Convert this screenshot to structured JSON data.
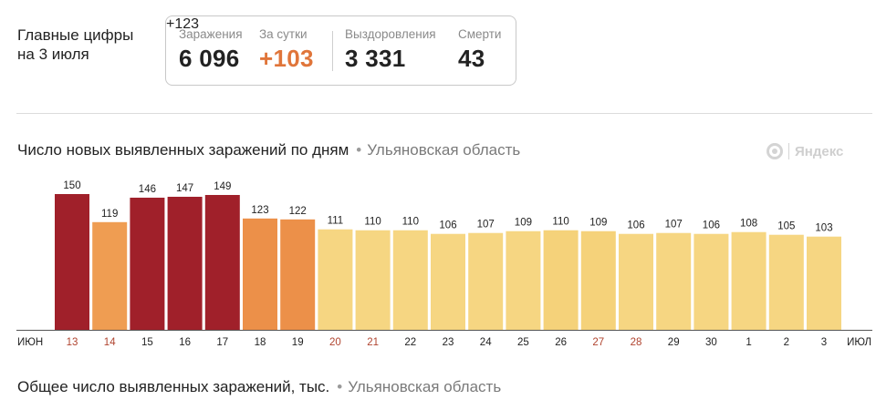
{
  "headline": {
    "line1": "Главные цифры",
    "line2": "на 3 июля"
  },
  "stats": {
    "infections_label": "Заражения",
    "infections_value": "6 096",
    "per_day_label": "За сутки",
    "per_day_value": "+103",
    "recovered_label": "Выздоровления",
    "recovered_value": "3 331",
    "recovered_delta": "+123",
    "deaths_label": "Смерти",
    "deaths_value": "43"
  },
  "section1": {
    "title": "Число новых выявленных заражений по дням",
    "region": "Ульяновская область"
  },
  "section2": {
    "title": "Общее число выявленных заражений, тыс.",
    "region": "Ульяновская область"
  },
  "logo": {
    "text": "Яндекс"
  },
  "colors": {
    "dark_red": "#a0202a",
    "orange": "#ef9d52",
    "dark_orange": "#eb8d4c",
    "yellow": "#f6d682",
    "light_yellow": "#f8de94",
    "weekend_tick": "#b0442f",
    "tick": "#222222"
  },
  "chart_data": {
    "type": "bar",
    "month_start_label": "ИЮН",
    "month_end_label": "ИЮЛ",
    "categories": [
      "13",
      "14",
      "15",
      "16",
      "17",
      "18",
      "19",
      "20",
      "21",
      "22",
      "23",
      "24",
      "25",
      "26",
      "27",
      "28",
      "29",
      "30",
      "1",
      "2",
      "3"
    ],
    "values": [
      150,
      119,
      146,
      147,
      149,
      123,
      122,
      111,
      110,
      110,
      106,
      107,
      109,
      110,
      109,
      106,
      107,
      106,
      108,
      105,
      103
    ],
    "bar_colors": [
      "#a0202a",
      "#ef9d52",
      "#a0202a",
      "#a0202a",
      "#a0202a",
      "#ec9049",
      "#ec9049",
      "#f6d682",
      "#f6d682",
      "#f6d682",
      "#f6d682",
      "#f6d682",
      "#f6d682",
      "#f5d27a",
      "#f5d27a",
      "#f6d682",
      "#f6d682",
      "#f6d682",
      "#f6d682",
      "#f6d682",
      "#f6d682"
    ],
    "weekend_ticks": [
      "13",
      "14",
      "20",
      "21",
      "27",
      "28"
    ],
    "ylim": [
      0,
      150
    ]
  }
}
